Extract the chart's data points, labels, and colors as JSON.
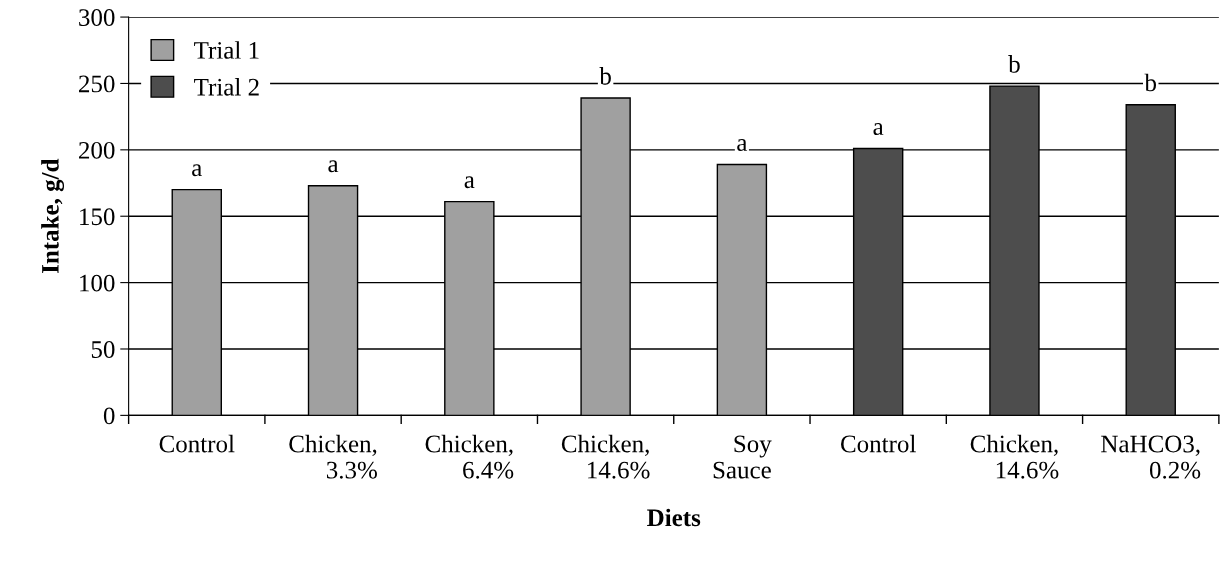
{
  "chart_data": {
    "type": "bar",
    "xlabel": "Diets",
    "ylabel": "Intake, g/d",
    "categories": [
      "Control",
      "Chicken,\n3.3%",
      "Chicken,\n6.4%",
      "Chicken,\n14.6%",
      "Soy\nSauce",
      "Control",
      "Chicken,\n14.6%",
      "NaHCO3,\n0.2%"
    ],
    "series": [
      {
        "name": "Trial 1",
        "color": "#a0a0a0",
        "values": [
          170,
          173,
          161,
          239,
          189,
          null,
          null,
          null
        ],
        "value_labels": [
          "a",
          "a",
          "a",
          "b",
          "a",
          null,
          null,
          null
        ]
      },
      {
        "name": "Trial 2",
        "color": "#4d4d4d",
        "values": [
          null,
          null,
          null,
          null,
          null,
          201,
          248,
          234
        ],
        "value_labels": [
          null,
          null,
          null,
          null,
          null,
          "a",
          "b",
          "b"
        ]
      }
    ],
    "ylim": [
      0,
      300
    ],
    "yticks": [
      0,
      50,
      100,
      150,
      200,
      250,
      300
    ],
    "grid": "y",
    "legend": "top left"
  }
}
